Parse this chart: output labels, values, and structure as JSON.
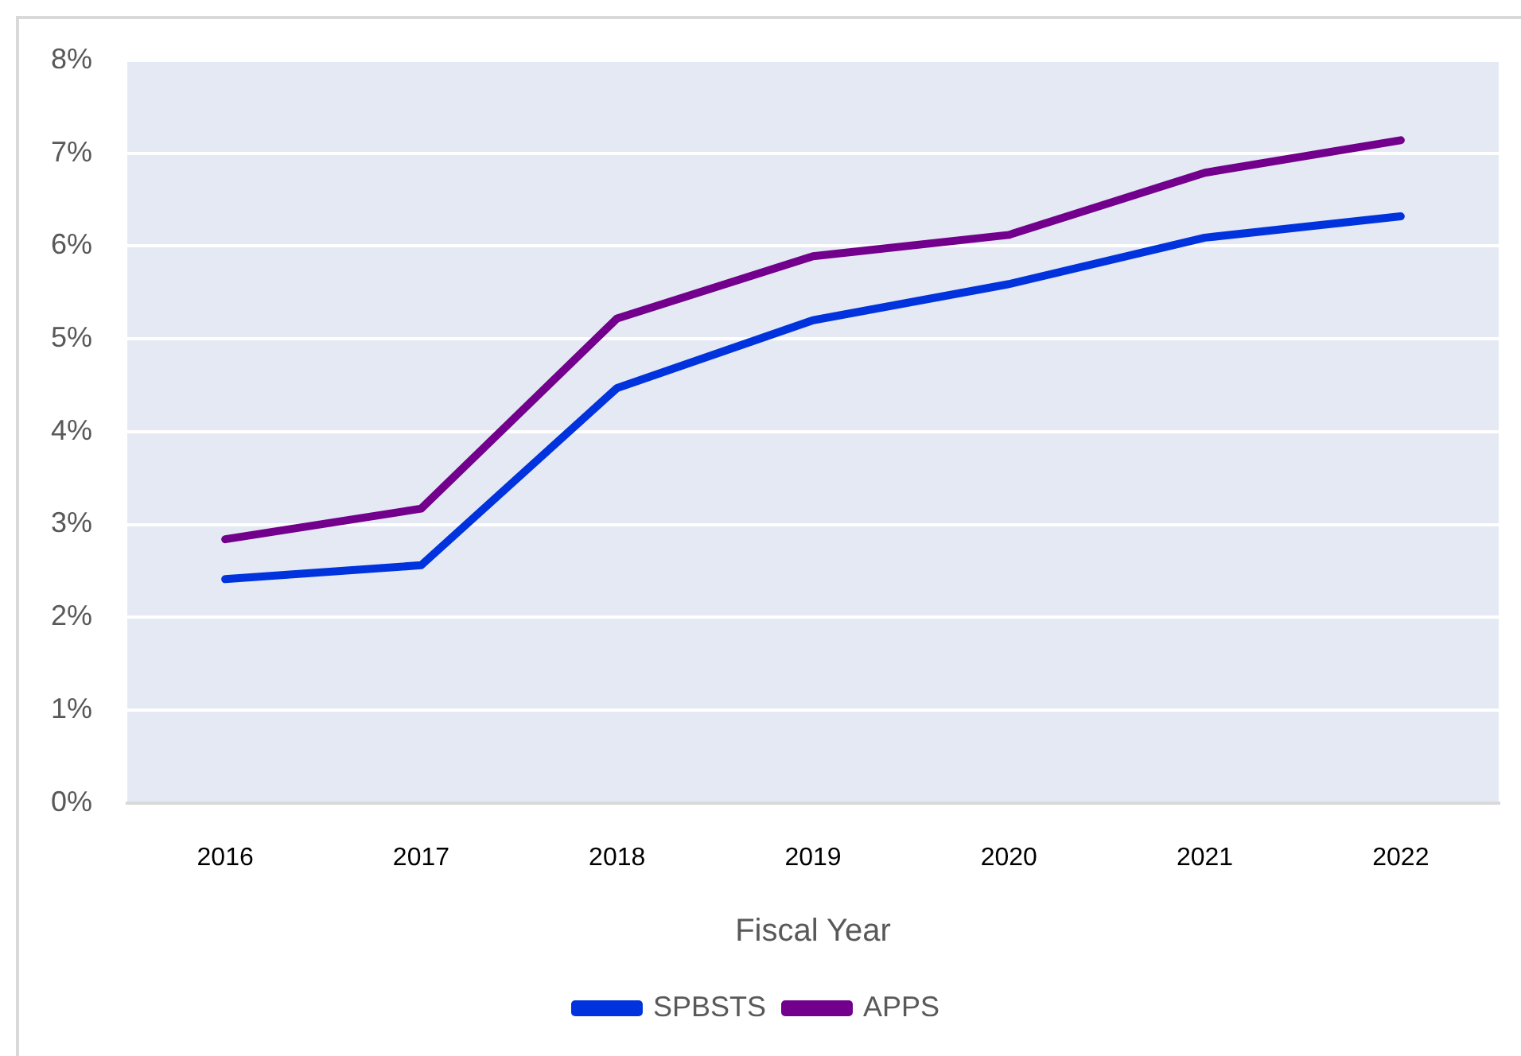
{
  "chart_data": {
    "type": "line",
    "xlabel": "Fiscal Year",
    "categories": [
      "2016",
      "2017",
      "2018",
      "2019",
      "2020",
      "2021",
      "2022"
    ],
    "series": [
      {
        "name": "SPBSTS",
        "color": "#0033dd",
        "values": [
          2.41,
          2.56,
          4.47,
          5.2,
          5.59,
          6.09,
          6.32
        ]
      },
      {
        "name": "APPS",
        "color": "#72008c",
        "values": [
          2.84,
          3.17,
          5.22,
          5.89,
          6.12,
          6.79,
          7.14
        ]
      }
    ],
    "ylim": [
      0,
      8
    ],
    "yticks": [
      {
        "value": 0,
        "label": "0%"
      },
      {
        "value": 1,
        "label": "1%"
      },
      {
        "value": 2,
        "label": "2%"
      },
      {
        "value": 3,
        "label": "3%"
      },
      {
        "value": 4,
        "label": "4%"
      },
      {
        "value": 5,
        "label": "5%"
      },
      {
        "value": 6,
        "label": "6%"
      },
      {
        "value": 7,
        "label": "7%"
      },
      {
        "value": 8,
        "label": "8%"
      }
    ],
    "grid": "y",
    "legend": "bottom",
    "marker": "none",
    "line_style": "solid"
  }
}
